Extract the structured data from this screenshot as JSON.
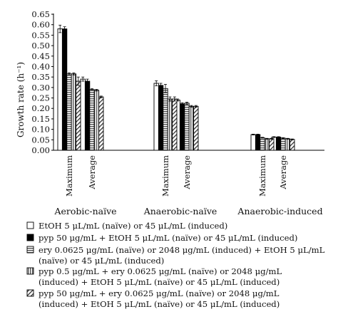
{
  "chart_data": {
    "type": "bar",
    "title": "",
    "ylabel": "Growth rate (h⁻¹)",
    "ylim": [
      0,
      0.65
    ],
    "ytick_step": 0.05,
    "ytick_labels": [
      "0.00",
      "0.05",
      "0.10",
      "0.15",
      "0.20",
      "0.25",
      "0.30",
      "0.35",
      "0.40",
      "0.45",
      "0.50",
      "0.55",
      "0.60",
      "0.65"
    ],
    "grid": false,
    "legend_position": "bottom",
    "groups": [
      {
        "label": "Aerobic-naïve",
        "subcategories": [
          "Maximum",
          "Average"
        ]
      },
      {
        "label": "Anaerobic-naïve",
        "subcategories": [
          "Maximum",
          "Average"
        ]
      },
      {
        "label": "Anaerobic-induced",
        "subcategories": [
          "Maximum",
          "Average"
        ]
      }
    ],
    "series": [
      {
        "legend_lines": [
          "EtOH 5 μL/mL (naïve) or 45 μL/mL (induced)"
        ],
        "fill": "white",
        "values": [
          0.58,
          0.34,
          0.32,
          0.24,
          0.075,
          0.063
        ],
        "errors": [
          0.018,
          0.01,
          0.012,
          0.005,
          0.002,
          0.002
        ]
      },
      {
        "legend_lines": [
          "pyp 50 μg/mL + EtOH 5 μL/mL (naïve) or 45 μL/mL (induced)"
        ],
        "fill": "black",
        "values": [
          0.58,
          0.33,
          0.31,
          0.222,
          0.075,
          0.063
        ],
        "errors": [
          0.01,
          0.01,
          0.01,
          0.005,
          0.002,
          0.002
        ]
      },
      {
        "legend_lines": [
          "ery 0.0625 μg/mL (naïve) or 2048 μg/mL (induced) + EtOH 5 μL/mL",
          "(naïve) or 45 μL/mL (induced)"
        ],
        "fill": "hstripes",
        "values": [
          0.365,
          0.29,
          0.295,
          0.225,
          0.06,
          0.058
        ],
        "errors": [
          0.005,
          0.004,
          0.02,
          0.005,
          0.002,
          0.002
        ]
      },
      {
        "legend_lines": [
          "pyp 0.5 μg/mL + ery 0.0625 μg/mL (naïve) or 2048 μg/mL",
          "(induced) + EtOH 5 μL/mL (naïve) or 45 μL/mL (induced)"
        ],
        "fill": "vstripes",
        "values": [
          0.365,
          0.287,
          0.245,
          0.21,
          0.055,
          0.055
        ],
        "errors": [
          0.005,
          0.004,
          0.01,
          0.004,
          0.002,
          0.002
        ]
      },
      {
        "legend_lines": [
          "pyp 50 μg/mL + ery 0.0625 μg/mL (naïve) or 2048 μg/mL",
          "(induced) + EtOH 5 μL/mL (naïve) or 45 μL/mL (induced)"
        ],
        "fill": "diagonal",
        "values": [
          0.33,
          0.255,
          0.245,
          0.21,
          0.055,
          0.052
        ],
        "errors": [
          0.02,
          0.004,
          0.01,
          0.004,
          0.002,
          0.002
        ]
      }
    ]
  }
}
